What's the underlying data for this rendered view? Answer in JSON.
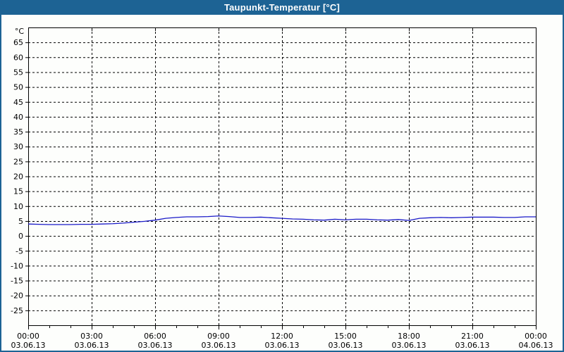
{
  "window": {
    "title": "Taupunkt-Temperatur [°C]",
    "titlebar_color": "#1d6394",
    "border_color": "#1d6394",
    "background_color": "#fdfefc"
  },
  "chart_data": {
    "type": "line",
    "title": "Taupunkt-Temperatur [°C]",
    "ylabel": "°C",
    "xlabel": "",
    "xlim": [
      0,
      24
    ],
    "ylim": [
      -30,
      70
    ],
    "grid": "dashed-black",
    "legend": "none",
    "y_ticks": [
      65,
      60,
      55,
      50,
      45,
      40,
      35,
      30,
      25,
      20,
      15,
      10,
      5,
      0,
      -5,
      -10,
      -15,
      -20,
      -25
    ],
    "x_ticks": [
      {
        "hour": 0,
        "time": "00:00",
        "date": "03.06.13"
      },
      {
        "hour": 3,
        "time": "03:00",
        "date": "03.06.13"
      },
      {
        "hour": 6,
        "time": "06:00",
        "date": "03.06.13"
      },
      {
        "hour": 9,
        "time": "09:00",
        "date": "03.06.13"
      },
      {
        "hour": 12,
        "time": "12:00",
        "date": "03.06.13"
      },
      {
        "hour": 15,
        "time": "15:00",
        "date": "03.06.13"
      },
      {
        "hour": 18,
        "time": "18:00",
        "date": "03.06.13"
      },
      {
        "hour": 21,
        "time": "21:00",
        "date": "03.06.13"
      },
      {
        "hour": 24,
        "time": "00:00",
        "date": "04.06.13"
      }
    ],
    "series": [
      {
        "name": "Taupunkt-Temperatur",
        "color": "#1a1ac8",
        "x_hours": [
          0,
          0.5,
          1,
          1.5,
          2,
          2.5,
          3,
          3.5,
          4,
          4.5,
          5,
          5.5,
          6,
          6.5,
          7,
          7.5,
          8,
          8.5,
          9,
          9.5,
          10,
          10.5,
          11,
          11.5,
          12,
          12.5,
          13,
          13.5,
          14,
          14.5,
          15,
          15.5,
          16,
          16.5,
          17,
          17.5,
          18,
          18.5,
          19,
          19.5,
          20,
          20.5,
          21,
          21.5,
          22,
          22.5,
          23,
          23.5,
          24
        ],
        "values": [
          4.0,
          3.9,
          3.8,
          3.8,
          3.8,
          3.9,
          3.9,
          4.0,
          4.1,
          4.3,
          4.6,
          4.9,
          5.3,
          5.9,
          6.2,
          6.4,
          6.4,
          6.5,
          6.7,
          6.5,
          6.2,
          6.2,
          6.3,
          6.1,
          5.9,
          5.7,
          5.6,
          5.4,
          5.3,
          5.6,
          5.4,
          5.6,
          5.6,
          5.4,
          5.3,
          5.5,
          5.2,
          5.9,
          6.1,
          6.2,
          6.1,
          6.2,
          6.3,
          6.3,
          6.3,
          6.2,
          6.2,
          6.4,
          6.4
        ]
      }
    ]
  }
}
